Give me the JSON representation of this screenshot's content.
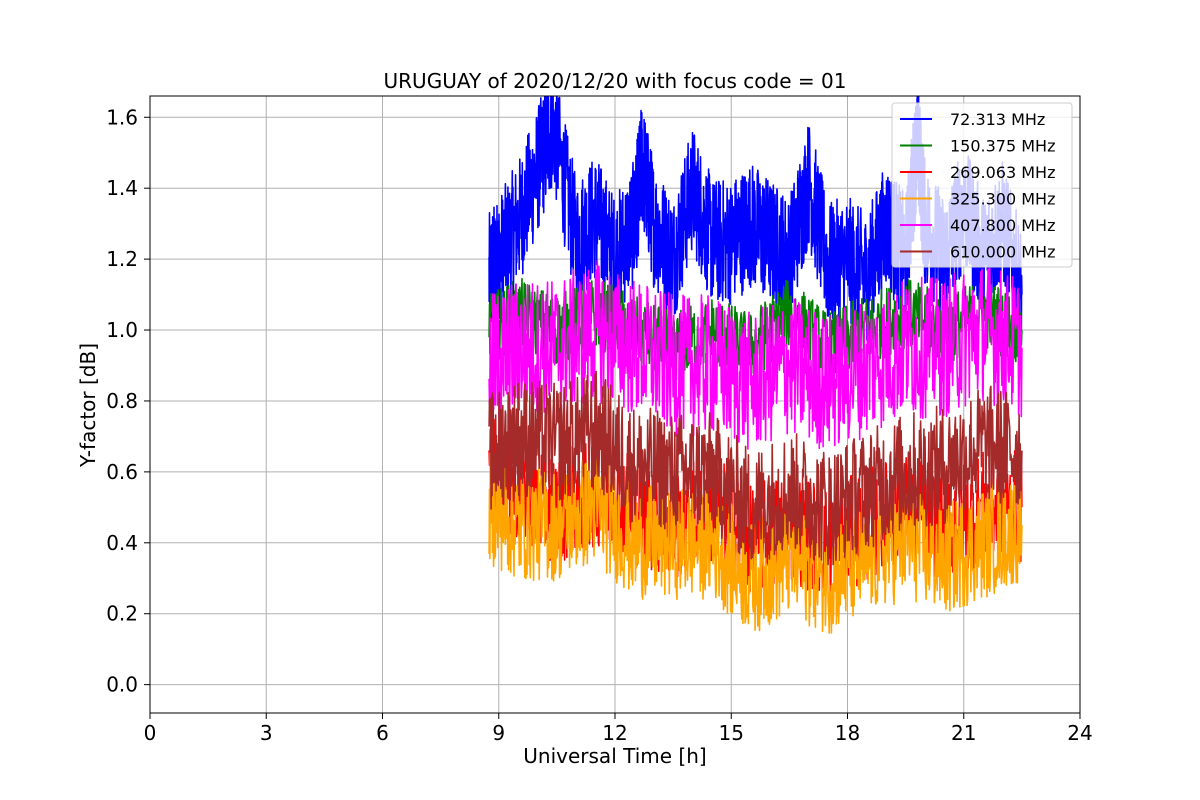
{
  "chart_data": {
    "type": "line",
    "title": "URUGUAY of 2020/12/20 with focus code = 01",
    "xlabel": "Universal Time [h]",
    "ylabel": "Y-factor [dB]",
    "xlim": [
      0,
      24
    ],
    "ylim": [
      -0.08,
      1.66
    ],
    "xticks": [
      0,
      3,
      6,
      9,
      12,
      15,
      18,
      21,
      24
    ],
    "yticks": [
      0.0,
      0.2,
      0.4,
      0.6,
      0.8,
      1.0,
      1.2,
      1.4,
      1.6
    ],
    "xtick_labels": [
      "0",
      "3",
      "6",
      "9",
      "12",
      "15",
      "18",
      "21",
      "24"
    ],
    "ytick_labels": [
      "0.0",
      "0.2",
      "0.4",
      "0.6",
      "0.8",
      "1.0",
      "1.2",
      "1.4",
      "1.6"
    ],
    "grid": true,
    "legend_position": "top-right",
    "series": [
      {
        "name": "  72.313 MHz",
        "color": "#0000ff",
        "x": [
          8.75,
          9.0,
          9.5,
          10.0,
          10.4,
          11.0,
          11.5,
          12.0,
          12.5,
          12.7,
          13.0,
          13.5,
          14.0,
          14.5,
          15.0,
          15.5,
          16.0,
          16.5,
          17.0,
          17.5,
          18.0,
          18.5,
          19.0,
          19.5,
          19.8,
          20.0,
          20.5,
          21.0,
          21.5,
          22.0,
          22.5
        ],
        "y": [
          1.15,
          1.2,
          1.3,
          1.45,
          1.58,
          1.25,
          1.32,
          1.2,
          1.3,
          1.47,
          1.3,
          1.2,
          1.4,
          1.25,
          1.25,
          1.3,
          1.25,
          1.2,
          1.42,
          1.18,
          1.2,
          1.15,
          1.3,
          1.2,
          1.54,
          1.3,
          1.2,
          1.35,
          1.2,
          1.3,
          1.1
        ]
      },
      {
        "name": "150.375 MHz",
        "color": "#008000",
        "x": [
          8.75,
          9.5,
          10.5,
          11.5,
          12.5,
          13.5,
          14.5,
          15.5,
          16.5,
          17.5,
          18.5,
          19.5,
          20.5,
          21.5,
          22.5
        ],
        "y": [
          1.0,
          1.05,
          1.0,
          1.05,
          1.0,
          0.95,
          1.0,
          0.95,
          1.05,
          0.95,
          1.0,
          1.05,
          1.0,
          1.05,
          1.0
        ]
      },
      {
        "name": "269.063 MHz",
        "color": "#ff0000",
        "x": [
          8.75,
          9.5,
          10.5,
          11.5,
          12.5,
          13.5,
          14.5,
          15.5,
          16.5,
          17.5,
          18.5,
          19.5,
          20.5,
          21.5,
          22.5
        ],
        "y": [
          0.6,
          0.55,
          0.5,
          0.55,
          0.5,
          0.45,
          0.5,
          0.4,
          0.45,
          0.4,
          0.45,
          0.5,
          0.45,
          0.5,
          0.5
        ]
      },
      {
        "name": "325.300 MHz",
        "color": "#ffa500",
        "x": [
          8.75,
          9.5,
          10.5,
          11.5,
          12.5,
          13.5,
          14.5,
          15.5,
          16.5,
          17.5,
          18.5,
          19.5,
          20.5,
          21.5,
          22.5
        ],
        "y": [
          0.5,
          0.45,
          0.45,
          0.5,
          0.4,
          0.4,
          0.4,
          0.3,
          0.35,
          0.3,
          0.35,
          0.4,
          0.35,
          0.4,
          0.45
        ]
      },
      {
        "name": "407.800 MHz",
        "color": "#ff00ff",
        "x": [
          8.75,
          9.5,
          10.5,
          11.5,
          12.5,
          13.5,
          14.5,
          15.5,
          16.5,
          17.5,
          18.5,
          19.5,
          20.5,
          21.5,
          22.5
        ],
        "y": [
          0.9,
          0.95,
          0.95,
          1.0,
          0.95,
          0.9,
          0.9,
          0.85,
          0.9,
          0.85,
          0.9,
          0.95,
          0.95,
          1.0,
          0.95
        ]
      },
      {
        "name": "610.000 MHz",
        "color": "#a52a2a",
        "x": [
          8.75,
          9.5,
          10.5,
          11.5,
          12.5,
          13.5,
          14.5,
          15.5,
          16.5,
          17.5,
          18.5,
          19.5,
          20.5,
          21.5,
          22.5
        ],
        "y": [
          0.65,
          0.7,
          0.68,
          0.72,
          0.62,
          0.6,
          0.6,
          0.5,
          0.55,
          0.5,
          0.55,
          0.6,
          0.62,
          0.68,
          0.66
        ]
      }
    ]
  }
}
